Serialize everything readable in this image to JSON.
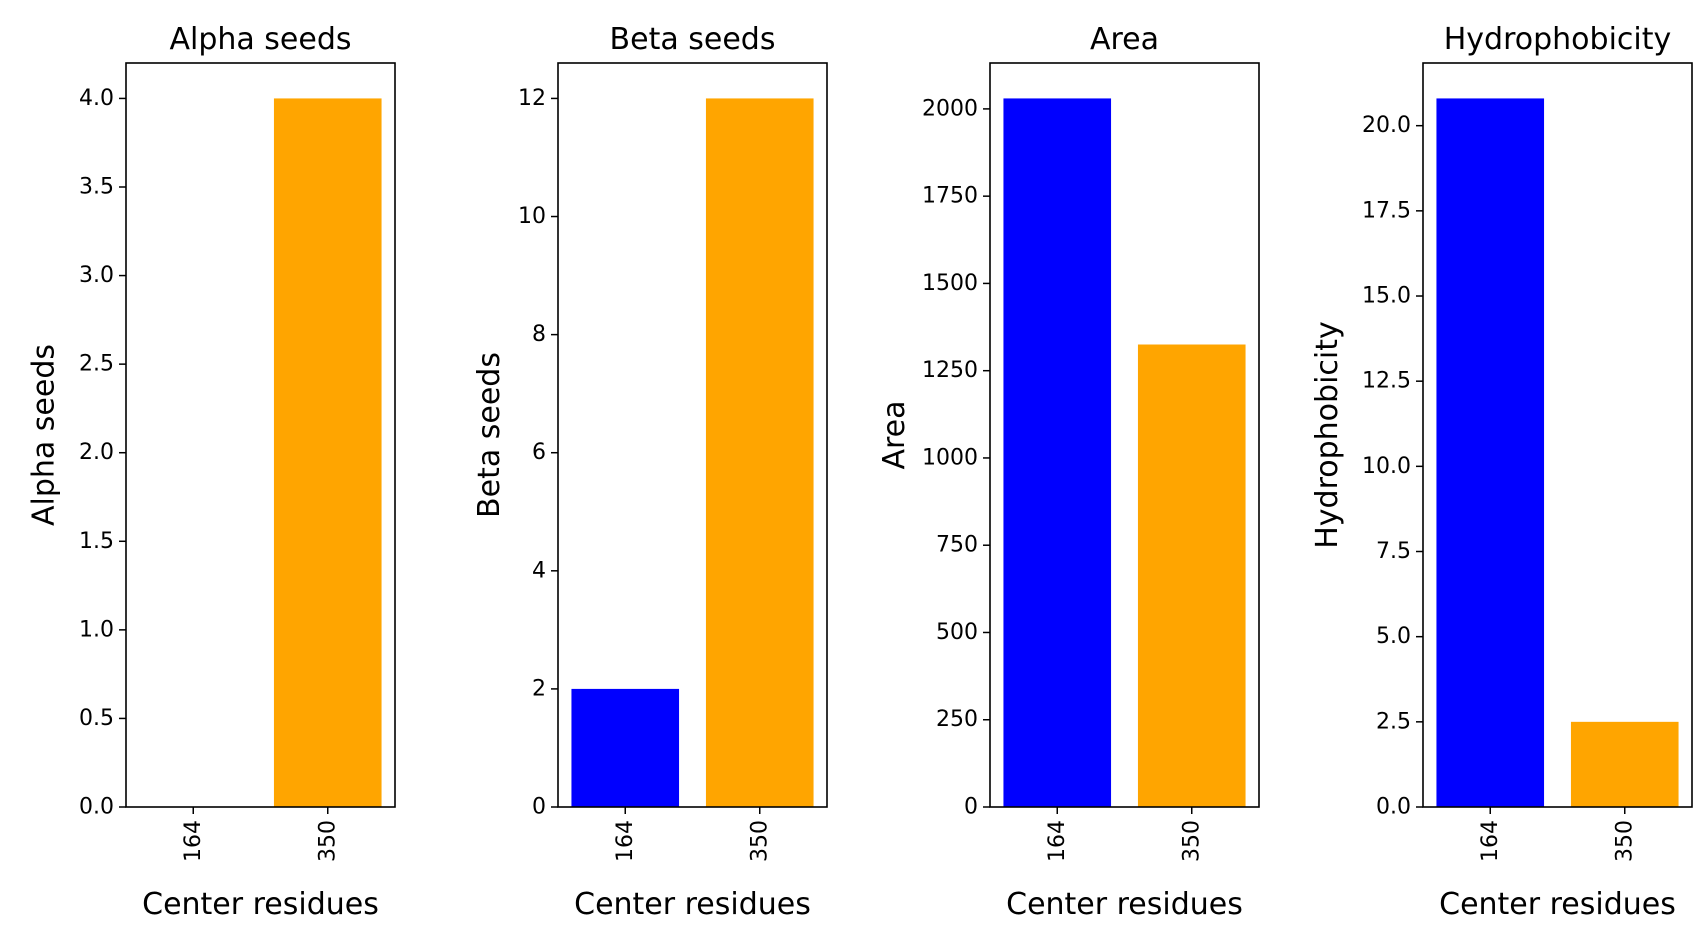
{
  "chart_data": [
    {
      "type": "bar",
      "title": "Alpha seeds",
      "xlabel": "Center residues",
      "ylabel": "Alpha seeds",
      "categories": [
        "164",
        "350"
      ],
      "values": [
        0,
        4
      ],
      "colors": [
        "#0000ff",
        "#ffa500"
      ],
      "ylim": [
        0,
        4.2
      ],
      "yticks": [
        0,
        0.5,
        1.0,
        1.5,
        2.0,
        2.5,
        3.0,
        3.5,
        4.0
      ],
      "ytick_labels": [
        "0.0",
        "0.5",
        "1.0",
        "1.5",
        "2.0",
        "2.5",
        "3.0",
        "3.5",
        "4.0"
      ],
      "grid": false,
      "legend": "none"
    },
    {
      "type": "bar",
      "title": "Beta seeds",
      "xlabel": "Center residues",
      "ylabel": "Beta seeds",
      "categories": [
        "164",
        "350"
      ],
      "values": [
        2,
        12
      ],
      "colors": [
        "#0000ff",
        "#ffa500"
      ],
      "ylim": [
        0,
        12.6
      ],
      "yticks": [
        0,
        2,
        4,
        6,
        8,
        10,
        12
      ],
      "ytick_labels": [
        "0",
        "2",
        "4",
        "6",
        "8",
        "10",
        "12"
      ],
      "grid": false,
      "legend": "none"
    },
    {
      "type": "bar",
      "title": "Area",
      "xlabel": "Center residues",
      "ylabel": "Area",
      "categories": [
        "164",
        "350"
      ],
      "values": [
        2030,
        1325
      ],
      "colors": [
        "#0000ff",
        "#ffa500"
      ],
      "ylim": [
        0,
        2131.5
      ],
      "yticks": [
        0,
        250,
        500,
        750,
        1000,
        1250,
        1500,
        1750,
        2000
      ],
      "ytick_labels": [
        "0",
        "250",
        "500",
        "750",
        "1000",
        "1250",
        "1500",
        "1750",
        "2000"
      ],
      "grid": false,
      "legend": "none"
    },
    {
      "type": "bar",
      "title": "Hydrophobicity",
      "xlabel": "Center residues",
      "ylabel": "Hydrophobicity",
      "categories": [
        "164",
        "350"
      ],
      "values": [
        20.8,
        2.5
      ],
      "colors": [
        "#0000ff",
        "#ffa500"
      ],
      "ylim": [
        0,
        21.84
      ],
      "yticks": [
        0,
        2.5,
        5.0,
        7.5,
        10.0,
        12.5,
        15.0,
        17.5,
        20.0
      ],
      "ytick_labels": [
        "0.0",
        "2.5",
        "5.0",
        "7.5",
        "10.0",
        "12.5",
        "15.0",
        "17.5",
        "20.0"
      ],
      "grid": false,
      "legend": "none"
    }
  ]
}
